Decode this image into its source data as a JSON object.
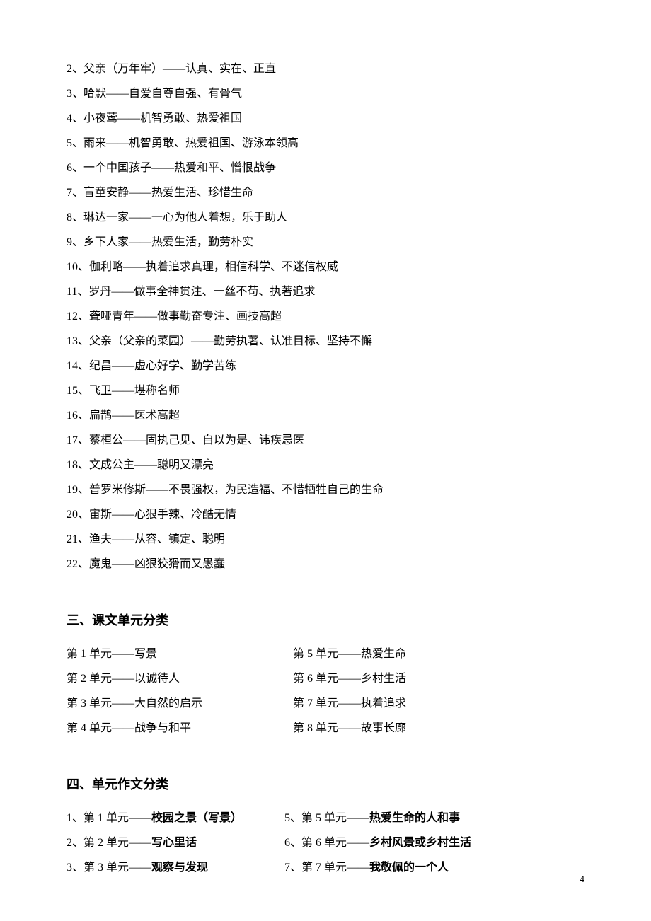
{
  "characters": [
    "2、父亲（万年牢）——认真、实在、正直",
    "3、哈默——自爱自尊自强、有骨气",
    "4、小夜莺——机智勇敢、热爱祖国",
    "5、雨来——机智勇敢、热爱祖国、游泳本领高",
    "6、一个中国孩子——热爱和平、憎恨战争",
    "7、盲童安静——热爱生活、珍惜生命",
    "8、琳达一家——一心为他人着想，乐于助人",
    "9、乡下人家——热爱生活，勤劳朴实",
    "10、伽利略——执着追求真理，相信科学、不迷信权威",
    "11、罗丹——做事全神贯注、一丝不苟、执著追求",
    "12、聋哑青年——做事勤奋专注、画技高超",
    "13、父亲（父亲的菜园）——勤劳执著、认准目标、坚持不懈",
    "14、纪昌——虚心好学、勤学苦练",
    "15、飞卫——堪称名师",
    "16、扁鹊——医术高超",
    "17、蔡桓公——固执己见、自以为是、讳疾忌医",
    "18、文成公主——聪明又漂亮",
    "19、普罗米修斯——不畏强权，为民造福、不惜牺牲自己的生命",
    "20、宙斯——心狠手辣、冷酷无情",
    "21、渔夫——从容、镇定、聪明",
    "22、魔鬼——凶狠狡猾而又愚蠢"
  ],
  "section3_heading": "三、课文单元分类",
  "units_left": [
    "第 1 单元——写景",
    "第 2 单元——以诚待人",
    "第 3 单元——大自然的启示",
    "第 4 单元——战争与和平"
  ],
  "units_right": [
    "第 5 单元——热爱生命",
    "第 6 单元——乡村生活",
    "第 7 单元——执着追求",
    "第 8 单元——故事长廊"
  ],
  "section4_heading": "四、单元作文分类",
  "essays_left": [
    {
      "prefix": "1、第 1 单元——",
      "bold": "校园之景（写景）"
    },
    {
      "prefix": "2、第 2 单元——",
      "bold": "写心里话"
    },
    {
      "prefix": "3、第 3 单元——",
      "bold": "观察与发现"
    }
  ],
  "essays_right": [
    {
      "prefix": "5、第 5 单元——",
      "bold": "热爱生命的人和事"
    },
    {
      "prefix": "6、第 6 单元——",
      "bold": "乡村风景或乡村生活"
    },
    {
      "prefix": "7、第 7 单元——",
      "bold": "我敬佩的一个人"
    }
  ],
  "page_number": "4"
}
